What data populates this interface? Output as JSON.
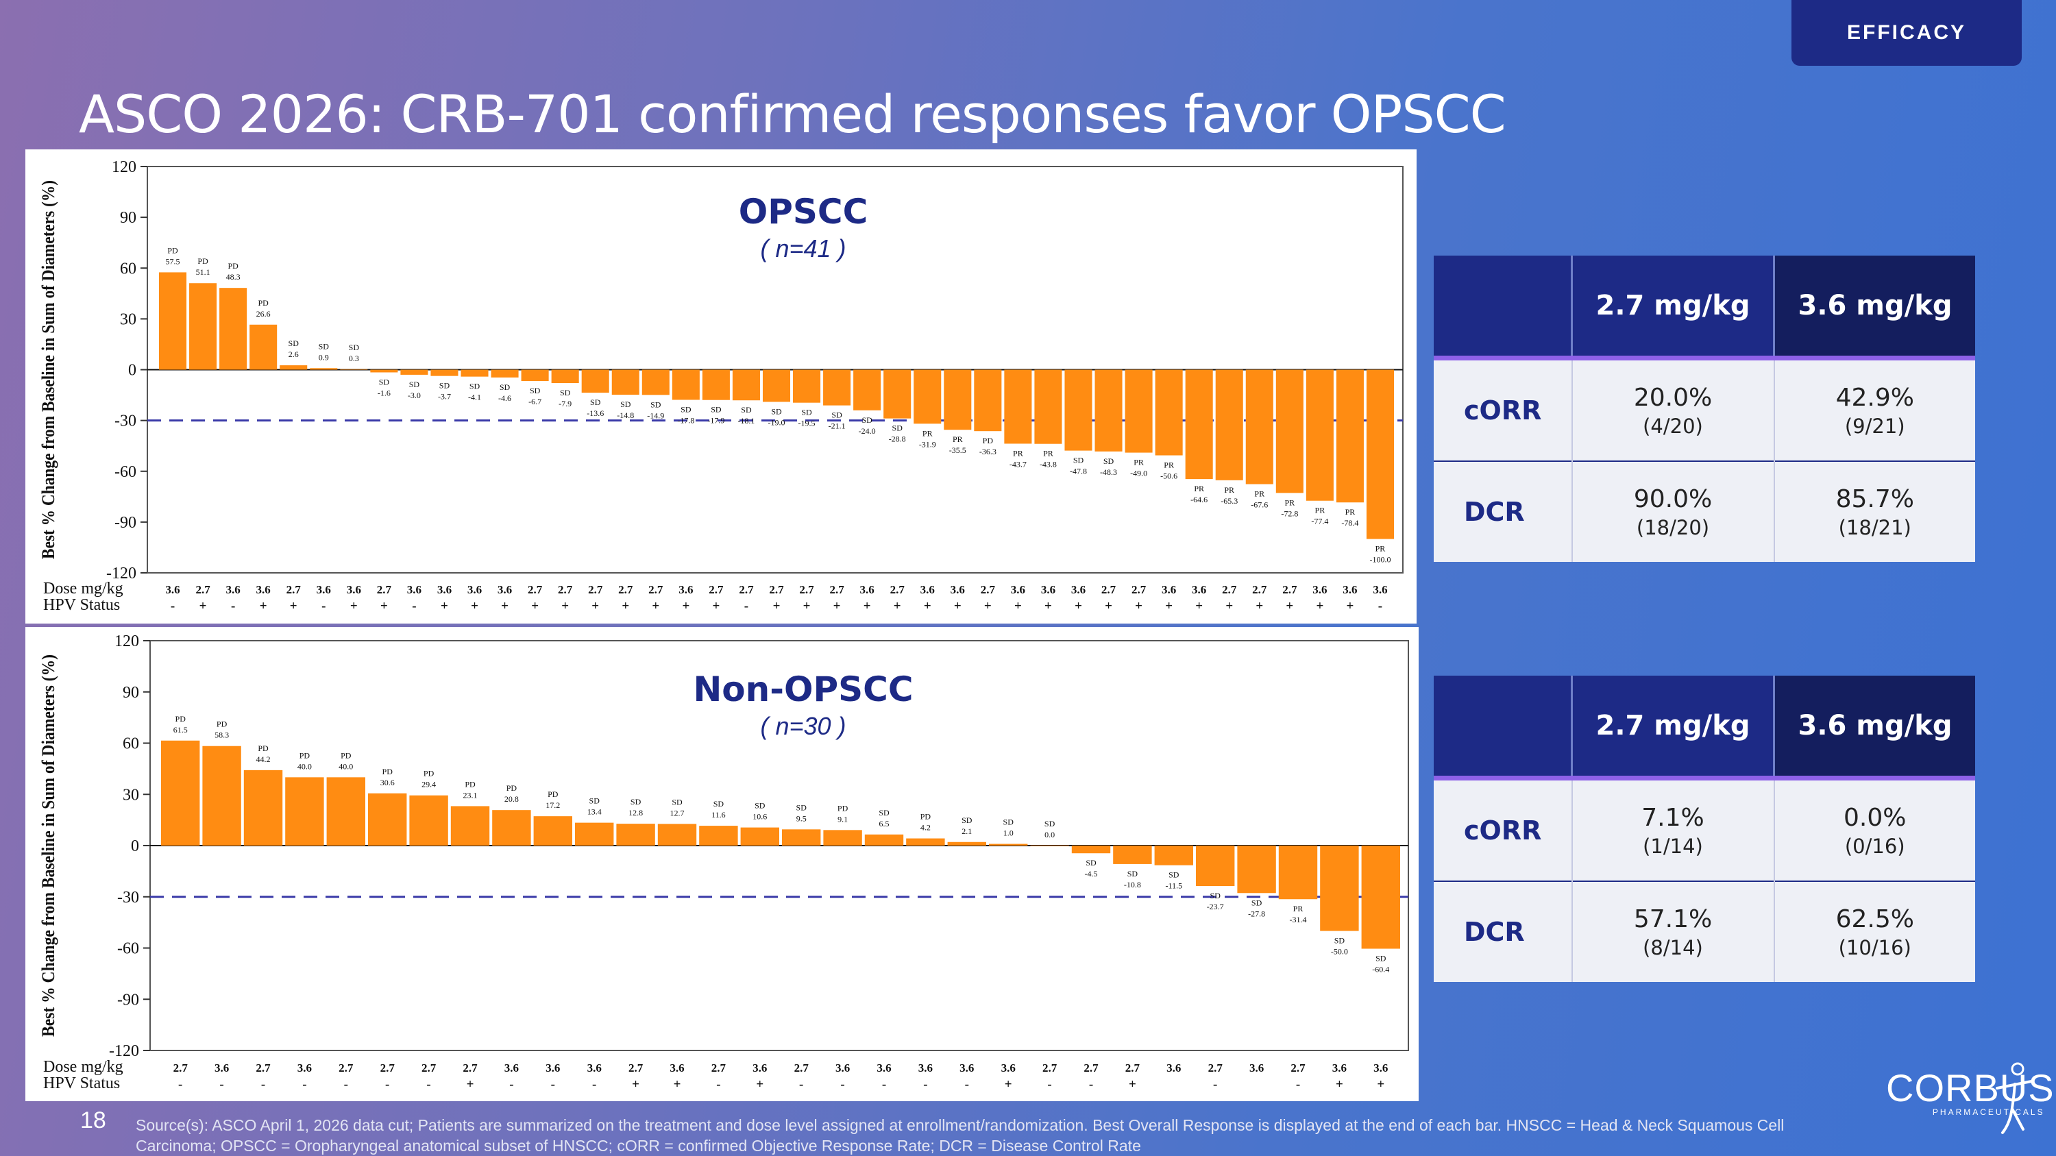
{
  "header": {
    "section_tab": "EFFICACY",
    "title": "ASCO 2026: CRB-701 confirmed responses favor OPSCC"
  },
  "chart_data": [
    {
      "type": "bar",
      "title": "OPSCC",
      "subtitle": "( n=41 )",
      "ylabel": "Best % Change from Baseline in Sum of Diameters (%)",
      "ylim": [
        -120,
        120
      ],
      "yticks": [
        120,
        90,
        60,
        30,
        0,
        -30,
        -60,
        -90,
        -120
      ],
      "threshold": -30,
      "bar_color": "#ff8c12",
      "row_labels": [
        "Dose mg/kg",
        "HPV Status"
      ],
      "values": [
        57.5,
        51.1,
        48.3,
        26.6,
        2.6,
        0.9,
        0.3,
        -1.6,
        -3.0,
        -3.7,
        -4.1,
        -4.6,
        -6.7,
        -7.9,
        -13.6,
        -14.8,
        -14.9,
        -17.8,
        -17.9,
        -18.1,
        -19.0,
        -19.5,
        -21.1,
        -24.0,
        -28.8,
        -31.9,
        -35.5,
        -36.3,
        -43.7,
        -43.8,
        -47.8,
        -48.3,
        -49.0,
        -50.6,
        -64.6,
        -65.3,
        -67.6,
        -72.8,
        -77.4,
        -78.4,
        -100.0
      ],
      "labels": [
        "57.5",
        "51.1",
        "48.3",
        "26.6",
        "2.6",
        "0.9",
        "0.3",
        "-1.6",
        "-3.0",
        "-3.7",
        "-4.1",
        "-4.6",
        "-6.7",
        "-7.9",
        "-13.6",
        "-14.8",
        "-14.9",
        "-17.8",
        "-17.9",
        "-18.1",
        "-19.0",
        "-19.5",
        "-21.1",
        "-24.0",
        "-28.8",
        "-31.9",
        "-35.5",
        "-36.3",
        "-43.7",
        "-43.8",
        "-47.8",
        "-48.3",
        "-49.0",
        "-50.6",
        "-64.6",
        "-65.3",
        "-67.6",
        "-72.8",
        "-77.4",
        "-78.4",
        "-100.0"
      ],
      "responses": [
        "PD",
        "PD",
        "PD",
        "PD",
        "SD",
        "SD",
        "SD",
        "SD",
        "SD",
        "SD",
        "SD",
        "SD",
        "SD",
        "SD",
        "SD",
        "SD",
        "SD",
        "SD",
        "SD",
        "SD",
        "SD",
        "SD",
        "SD",
        "SD",
        "SD",
        "PR",
        "PR",
        "PD",
        "PR",
        "PR",
        "SD",
        "SD",
        "PR",
        "PR",
        "PR",
        "PR",
        "PR",
        "PR",
        "PR",
        "PR",
        "PR"
      ],
      "dose": [
        "3.6",
        "2.7",
        "3.6",
        "3.6",
        "2.7",
        "3.6",
        "3.6",
        "2.7",
        "3.6",
        "3.6",
        "3.6",
        "3.6",
        "2.7",
        "2.7",
        "2.7",
        "2.7",
        "2.7",
        "3.6",
        "2.7",
        "2.7",
        "2.7",
        "2.7",
        "2.7",
        "3.6",
        "2.7",
        "3.6",
        "3.6",
        "2.7",
        "3.6",
        "3.6",
        "3.6",
        "2.7",
        "2.7",
        "3.6",
        "3.6",
        "2.7",
        "2.7",
        "2.7",
        "3.6",
        "3.6",
        "3.6"
      ],
      "hpv": [
        "-",
        "+",
        "-",
        "+",
        "+",
        "-",
        "+",
        "+",
        "-",
        "+",
        "+",
        "+",
        "+",
        "+",
        "+",
        "+",
        "+",
        "+",
        "+",
        "-",
        "+",
        "+",
        "+",
        "+",
        "+",
        "+",
        "+",
        "+",
        "+",
        "+",
        "+",
        "+",
        "+",
        "+",
        "+",
        "+",
        "+",
        "+",
        "+",
        "+",
        "-"
      ]
    },
    {
      "type": "bar",
      "title": "Non-OPSCC",
      "subtitle": "( n=30 )",
      "ylabel": "Best % Change from Baseline in Sum of Diameters (%)",
      "ylim": [
        -120,
        120
      ],
      "yticks": [
        120,
        90,
        60,
        30,
        0,
        -30,
        -60,
        -90,
        -120
      ],
      "threshold": -30,
      "bar_color": "#ff8c12",
      "row_labels": [
        "Dose mg/kg",
        "HPV Status"
      ],
      "values": [
        61.5,
        58.3,
        44.2,
        40.0,
        40.0,
        30.6,
        29.4,
        23.1,
        20.8,
        17.2,
        13.4,
        12.8,
        12.7,
        11.6,
        10.6,
        9.5,
        9.1,
        6.5,
        4.2,
        2.1,
        1.0,
        0.0,
        -4.5,
        -10.8,
        -11.5,
        -23.7,
        -27.8,
        -31.4,
        -50.0,
        -60.4
      ],
      "labels": [
        "61.5",
        "58.3",
        "44.2",
        "40.0",
        "40.0",
        "30.6",
        "29.4",
        "23.1",
        "20.8",
        "17.2",
        "13.4",
        "12.8",
        "12.7",
        "11.6",
        "10.6",
        "9.5",
        "9.1",
        "6.5",
        "4.2",
        "2.1",
        "1.0",
        "0.0",
        "-4.5",
        "-10.8",
        "-11.5",
        "-23.7",
        "-27.8",
        "-31.4",
        "-50.0",
        "-60.4"
      ],
      "responses": [
        "PD",
        "PD",
        "PD",
        "PD",
        "PD",
        "PD",
        "PD",
        "PD",
        "PD",
        "PD",
        "SD",
        "SD",
        "SD",
        "SD",
        "SD",
        "SD",
        "PD",
        "SD",
        "PD",
        "SD",
        "SD",
        "SD",
        "SD",
        "SD",
        "SD",
        "SD",
        "SD",
        "PR",
        "SD",
        "SD"
      ],
      "dose": [
        "2.7",
        "3.6",
        "2.7",
        "3.6",
        "2.7",
        "2.7",
        "2.7",
        "2.7",
        "3.6",
        "3.6",
        "3.6",
        "2.7",
        "3.6",
        "2.7",
        "3.6",
        "2.7",
        "3.6",
        "3.6",
        "3.6",
        "3.6",
        "3.6",
        "2.7",
        "2.7",
        "2.7",
        "3.6",
        "2.7",
        "3.6",
        "2.7",
        "3.6",
        "3.6"
      ],
      "hpv": [
        "-",
        "-",
        "-",
        "-",
        "-",
        "-",
        "-",
        "+",
        "-",
        "-",
        "-",
        "+",
        "+",
        "-",
        "+",
        "-",
        "-",
        "-",
        "-",
        "-",
        "+",
        "-",
        "-",
        "+",
        "",
        "-",
        "",
        "-",
        "+",
        "+"
      ]
    }
  ],
  "tables": [
    {
      "headers": [
        "",
        "2.7 mg/kg",
        "3.6 mg/kg"
      ],
      "rows": [
        {
          "label": "cORR",
          "c1_value": "20.0%",
          "c1_frac": "(4/20)",
          "c2_value": "42.9%",
          "c2_frac": "(9/21)"
        },
        {
          "label": "DCR",
          "c1_value": "90.0%",
          "c1_frac": "(18/20)",
          "c2_value": "85.7%",
          "c2_frac": "(18/21)"
        }
      ]
    },
    {
      "headers": [
        "",
        "2.7 mg/kg",
        "3.6 mg/kg"
      ],
      "rows": [
        {
          "label": "cORR",
          "c1_value": "7.1%",
          "c1_frac": "(1/14)",
          "c2_value": "0.0%",
          "c2_frac": "(0/16)"
        },
        {
          "label": "DCR",
          "c1_value": "57.1%",
          "c1_frac": "(8/14)",
          "c2_value": "62.5%",
          "c2_frac": "(10/16)"
        }
      ]
    }
  ],
  "footer": {
    "page": "18",
    "source": "Source(s): ASCO April 1, 2026 data cut; Patients are summarized on the treatment and dose level assigned at enrollment/randomization. Best Overall Response is displayed at the end of each bar. HNSCC = Head & Neck Squamous Cell Carcinoma; OPSCC = Oropharyngeal anatomical subset of HNSCC; cORR = confirmed Objective Response Rate; DCR = Disease Control Rate",
    "logo_word": "CORBUS",
    "logo_sub": "PHARMACEUTICALS"
  },
  "colors": {
    "navy": "#1d2a86",
    "bar": "#ff8c12",
    "threshold": "#3a3aa8",
    "accent": "#8e61e8"
  }
}
